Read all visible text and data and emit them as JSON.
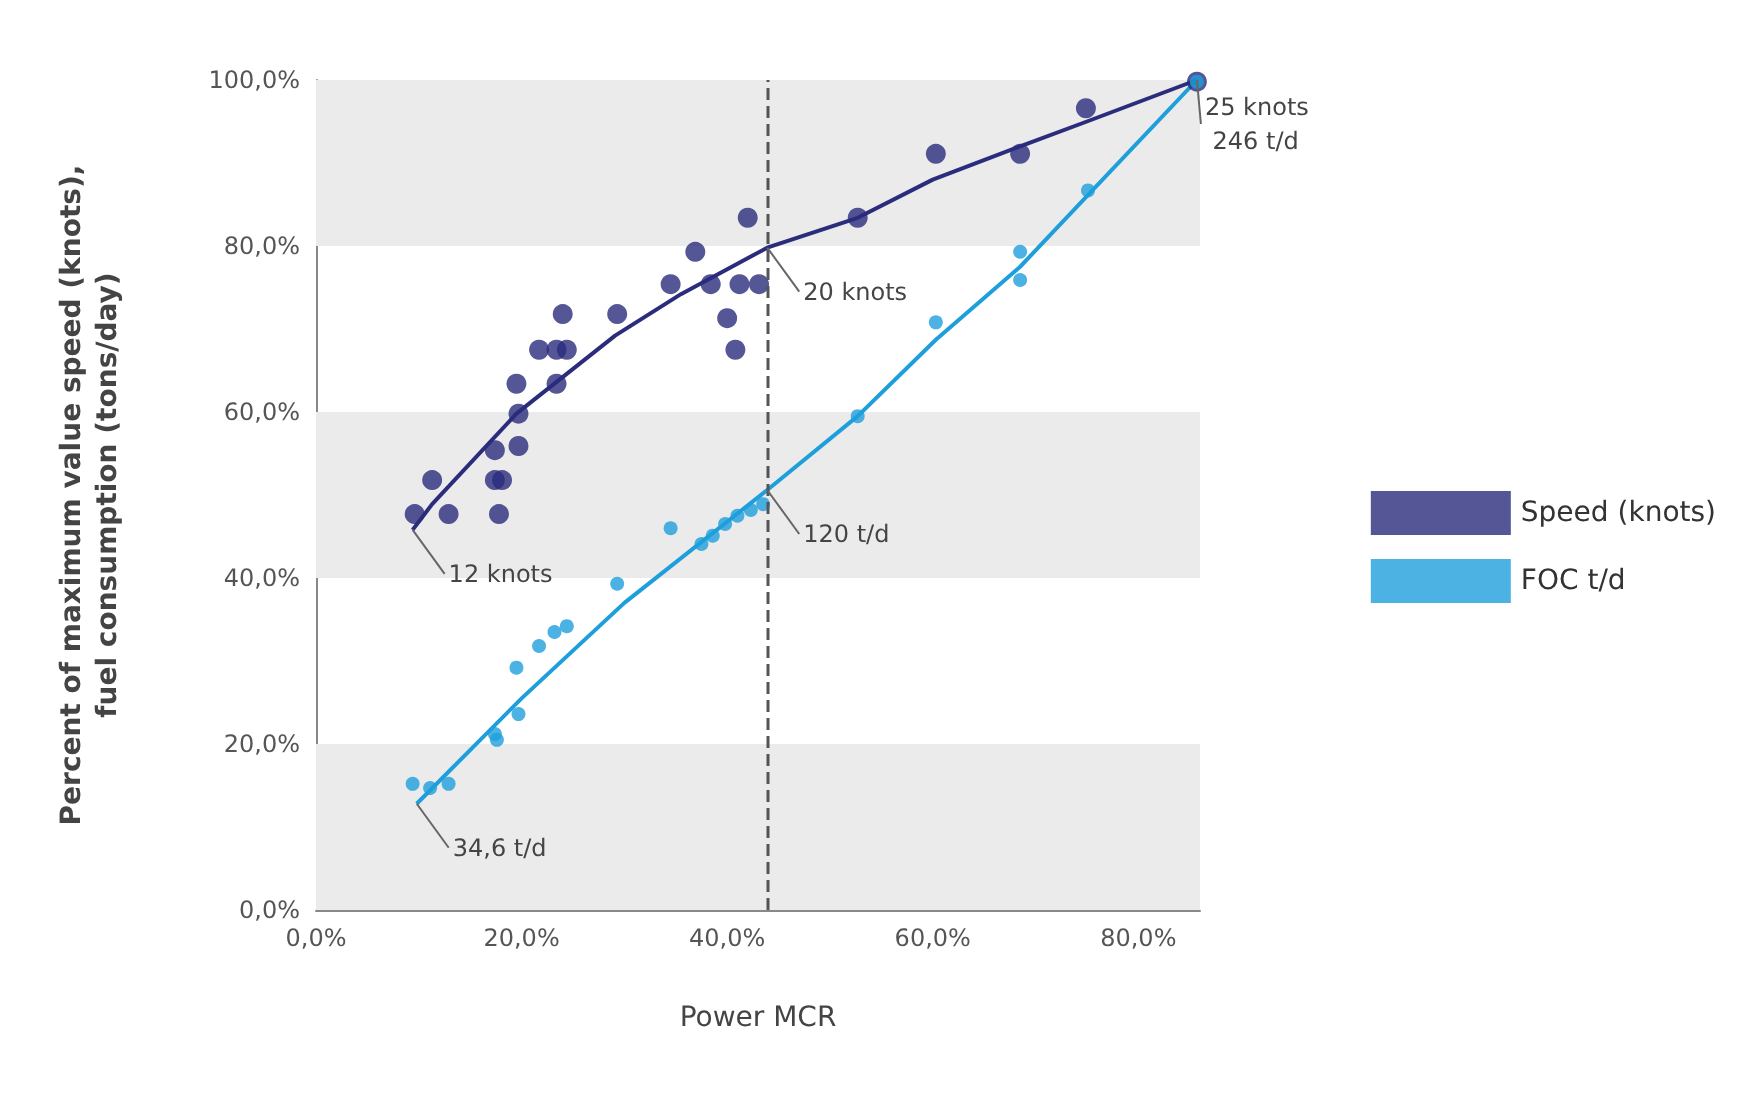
{
  "chart_data": {
    "type": "scatter",
    "xlabel": "Power MCR",
    "ylabel": "Percent of maximum value speed (knots),\nfuel consumption (tons/day)",
    "xlim": [
      0,
      86
    ],
    "ylim": [
      0,
      100
    ],
    "xticks": [
      {
        "value": 0,
        "label": "0,0%"
      },
      {
        "value": 20,
        "label": "20,0%"
      },
      {
        "value": 40,
        "label": "40,0%"
      },
      {
        "value": 60,
        "label": "60,0%"
      },
      {
        "value": 80,
        "label": "80,0%"
      }
    ],
    "yticks": [
      {
        "value": 0,
        "label": "0,0%"
      },
      {
        "value": 20,
        "label": "20,0%"
      },
      {
        "value": 40,
        "label": "40,0%"
      },
      {
        "value": 60,
        "label": "60,0%"
      },
      {
        "value": 80,
        "label": "80,0%"
      },
      {
        "value": 100,
        "label": "100,0%"
      }
    ],
    "marker": "circle",
    "legend": "right",
    "series": [
      {
        "name": "Speed (knots)",
        "color": "#2b2c7c",
        "x": [
          42.0,
          36.9,
          34.5,
          38.4,
          41.2,
          43.1,
          40.0,
          40.8,
          29.3,
          24.0,
          21.7,
          23.4,
          24.4,
          19.5,
          23.4,
          19.7,
          17.4,
          19.7,
          17.4,
          18.1,
          11.3,
          9.6,
          12.9,
          17.8,
          52.7,
          60.3,
          68.5,
          74.9,
          85.7
        ],
        "values": [
          83.4,
          79.3,
          75.4,
          75.4,
          75.4,
          75.4,
          71.3,
          67.5,
          71.8,
          71.8,
          67.5,
          67.5,
          67.5,
          63.4,
          63.4,
          59.8,
          55.4,
          55.9,
          51.8,
          51.8,
          51.8,
          47.7,
          47.7,
          47.7,
          83.4,
          91.1,
          91.1,
          96.6,
          99.8
        ]
      },
      {
        "name": "FOC t/d",
        "color": "#1e9fdc",
        "x": [
          9.4,
          11.1,
          12.9,
          17.4,
          17.6,
          19.7,
          19.5,
          21.7,
          23.2,
          24.4,
          29.3,
          34.5,
          37.5,
          38.6,
          39.8,
          41.0,
          42.3,
          43.5,
          52.7,
          60.3,
          68.5,
          68.5,
          75.1,
          85.7
        ],
        "values": [
          15.2,
          14.7,
          15.2,
          21.2,
          20.5,
          23.6,
          29.2,
          31.8,
          33.5,
          34.2,
          39.3,
          46.0,
          44.1,
          45.1,
          46.5,
          47.5,
          48.2,
          48.9,
          59.5,
          70.8,
          75.9,
          79.3,
          86.7,
          99.8
        ]
      },
      {
        "type": "line",
        "color": "#2b2c7c",
        "marker": "none",
        "x": [
          9.4,
          11.3,
          19.5,
          29.1,
          35.5,
          43.9,
          52.7,
          60,
          68.5,
          75,
          85.7
        ],
        "values": [
          45.8,
          48.9,
          59.8,
          69.2,
          74.2,
          79.8,
          83.4,
          88,
          92,
          95,
          100
        ]
      },
      {
        "type": "line",
        "color": "#1e9fdc",
        "marker": "none",
        "x": [
          9.8,
          20,
          30,
          43.9,
          52.7,
          60.3,
          68.5,
          75,
          85.7
        ],
        "values": [
          12.8,
          25.5,
          37,
          50.6,
          59.5,
          68.7,
          77.5,
          86,
          100
        ]
      }
    ],
    "ref_lines": [
      {
        "axis": "x",
        "value": 43.9,
        "line_style": "dashed",
        "color": "#555555"
      }
    ],
    "bands": [
      {
        "axis": "y",
        "from": 0,
        "to": 20,
        "color": "#ebebeb"
      },
      {
        "axis": "y",
        "from": 40,
        "to": 60,
        "color": "#ebebeb"
      },
      {
        "axis": "y",
        "from": 80,
        "to": 100,
        "color": "#ebebeb"
      }
    ],
    "annotations": [
      {
        "text": "12 knots",
        "x": 9.4,
        "y": 45.8
      },
      {
        "text": "34,6 t/d",
        "x": 9.8,
        "y": 12.8
      },
      {
        "text": "20 knots",
        "x": 43.9,
        "y": 79.8
      },
      {
        "text": "120 t/d",
        "x": 43.9,
        "y": 50.6
      },
      {
        "text": "25 knots 246 t/d",
        "x": 85.7,
        "y": 100
      }
    ]
  }
}
